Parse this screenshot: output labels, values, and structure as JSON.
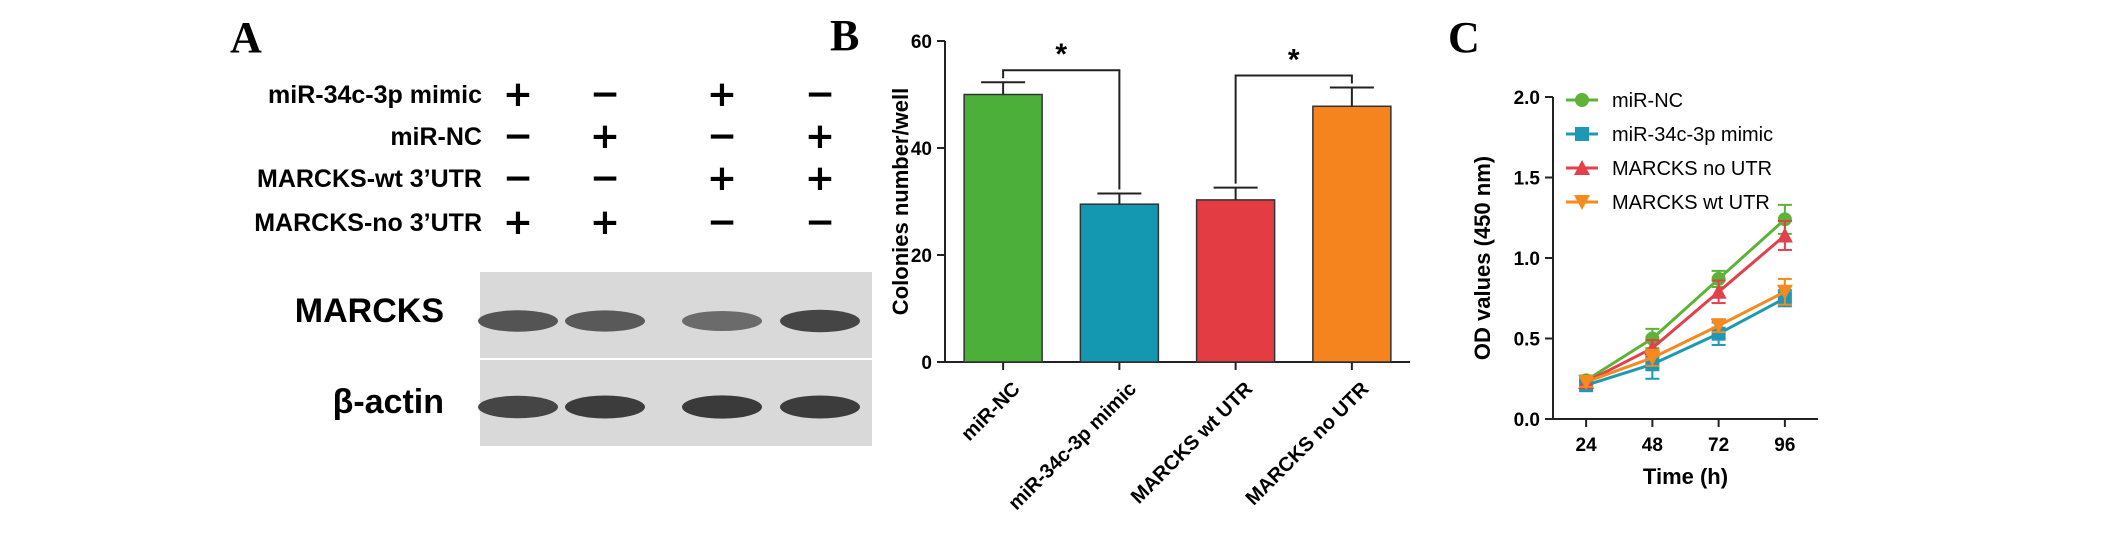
{
  "panel_a": {
    "letter": "A",
    "rows": [
      {
        "label": "miR-34c-3p mimic",
        "signs": [
          "+",
          "−",
          "+",
          "−"
        ]
      },
      {
        "label": "miR-NC",
        "signs": [
          "−",
          "+",
          "−",
          "+"
        ]
      },
      {
        "label": "MARCKS-wt 3’UTR",
        "signs": [
          "−",
          "−",
          "+",
          "+"
        ]
      },
      {
        "label": "MARCKS-no 3’UTR",
        "signs": [
          "+",
          "+",
          "−",
          "−"
        ]
      }
    ],
    "blots": [
      {
        "label": "MARCKS",
        "band_intensity": [
          0.75,
          0.72,
          0.6,
          0.85
        ]
      },
      {
        "label": "β-actin",
        "band_intensity": [
          0.85,
          0.9,
          0.92,
          0.9
        ]
      }
    ]
  },
  "chart_data": [
    {
      "type": "bar",
      "letter": "B",
      "ylabel": "Colonies number/well",
      "ylim": [
        0,
        60
      ],
      "yticks": [
        "0",
        "20",
        "40",
        "60"
      ],
      "categories": [
        "miR-NC",
        "miR-34c-3p mimic",
        "MARCKS wt UTR",
        "MARCKS no UTR"
      ],
      "values": [
        50,
        29.5,
        30.3,
        47.8
      ],
      "errors": [
        2.3,
        2.0,
        2.3,
        3.5
      ],
      "colors": [
        "#4caf3a",
        "#1497b0",
        "#e33c42",
        "#f5841f"
      ],
      "significance": [
        {
          "from": 0,
          "to": 1,
          "label": "*"
        },
        {
          "from": 2,
          "to": 3,
          "label": "*"
        }
      ]
    },
    {
      "type": "line",
      "letter": "C",
      "xlabel": "Time (h)",
      "ylabel": "OD values (450 nm)",
      "x": [
        24,
        48,
        72,
        96
      ],
      "xticks": [
        "24",
        "48",
        "72",
        "96"
      ],
      "ylim": [
        0,
        2.0
      ],
      "yticks": [
        "0.0",
        "0.5",
        "1.0",
        "1.5",
        "2.0"
      ],
      "legend_position": "top-left",
      "series": [
        {
          "name": "miR-NC",
          "marker": "circle",
          "color": "#5cb338",
          "values": [
            0.24,
            0.5,
            0.87,
            1.24
          ],
          "errors": [
            0.03,
            0.06,
            0.05,
            0.09
          ]
        },
        {
          "name": "miR-34c-3p mimic",
          "marker": "square",
          "color": "#1e98b5",
          "values": [
            0.21,
            0.34,
            0.53,
            0.75
          ],
          "errors": [
            0.02,
            0.09,
            0.07,
            0.05
          ]
        },
        {
          "name": "MARCKS no UTR",
          "marker": "triangle-up",
          "color": "#e2404a",
          "values": [
            0.23,
            0.44,
            0.79,
            1.14
          ],
          "errors": [
            0.03,
            0.05,
            0.07,
            0.09
          ]
        },
        {
          "name": "MARCKS wt UTR",
          "marker": "triangle-down",
          "color": "#f58a1f",
          "values": [
            0.23,
            0.38,
            0.58,
            0.79
          ],
          "errors": [
            0.03,
            0.05,
            0.04,
            0.08
          ]
        }
      ]
    }
  ]
}
